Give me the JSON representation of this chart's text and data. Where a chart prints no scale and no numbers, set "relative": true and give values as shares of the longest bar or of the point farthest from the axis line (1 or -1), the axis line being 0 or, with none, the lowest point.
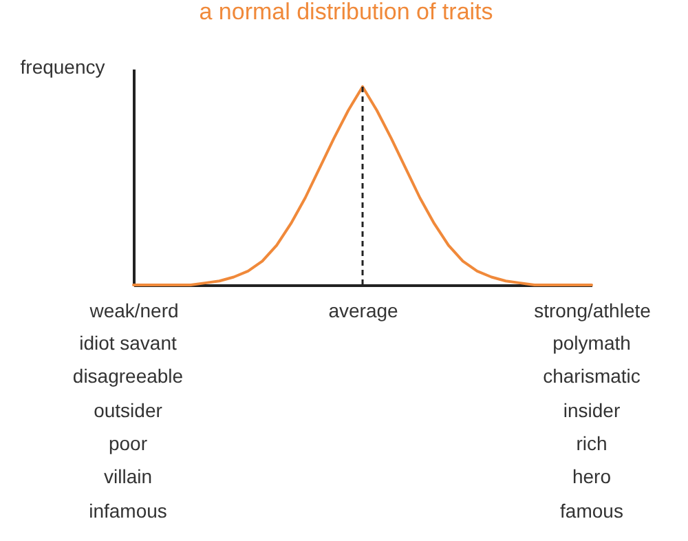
{
  "chart_data": {
    "type": "line",
    "title": "a normal distribution of traits",
    "ylabel": "frequency",
    "relative": true,
    "grid": false,
    "marker": "none",
    "line_style": "solid",
    "categories": [
      "weak/nerd",
      null,
      null,
      null,
      null,
      null,
      null,
      null,
      null,
      null,
      null,
      null,
      null,
      null,
      null,
      null,
      "average",
      null,
      null,
      null,
      null,
      null,
      null,
      null,
      null,
      null,
      null,
      null,
      null,
      null,
      null,
      null,
      "strong/athlete"
    ],
    "series": [
      {
        "color": "#f0893a",
        "values": [
          0,
          0,
          0,
          0,
          0,
          0.01,
          0.02,
          0.04,
          0.07,
          0.12,
          0.2,
          0.31,
          0.44,
          0.59,
          0.74,
          0.88,
          1,
          0.88,
          0.74,
          0.59,
          0.44,
          0.31,
          0.2,
          0.12,
          0.07,
          0.04,
          0.02,
          0.01,
          0,
          0,
          0,
          0,
          0
        ]
      }
    ],
    "ref_lines": [
      {
        "axis": "x",
        "value": "average",
        "line_style": "dashed",
        "color": "#222222"
      }
    ],
    "annotations": [
      "idiot savant",
      "disagreeable",
      "outsider",
      "poor",
      "villain",
      "infamous",
      "polymath",
      "charismatic",
      "insider",
      "rich",
      "hero",
      "famous"
    ]
  }
}
